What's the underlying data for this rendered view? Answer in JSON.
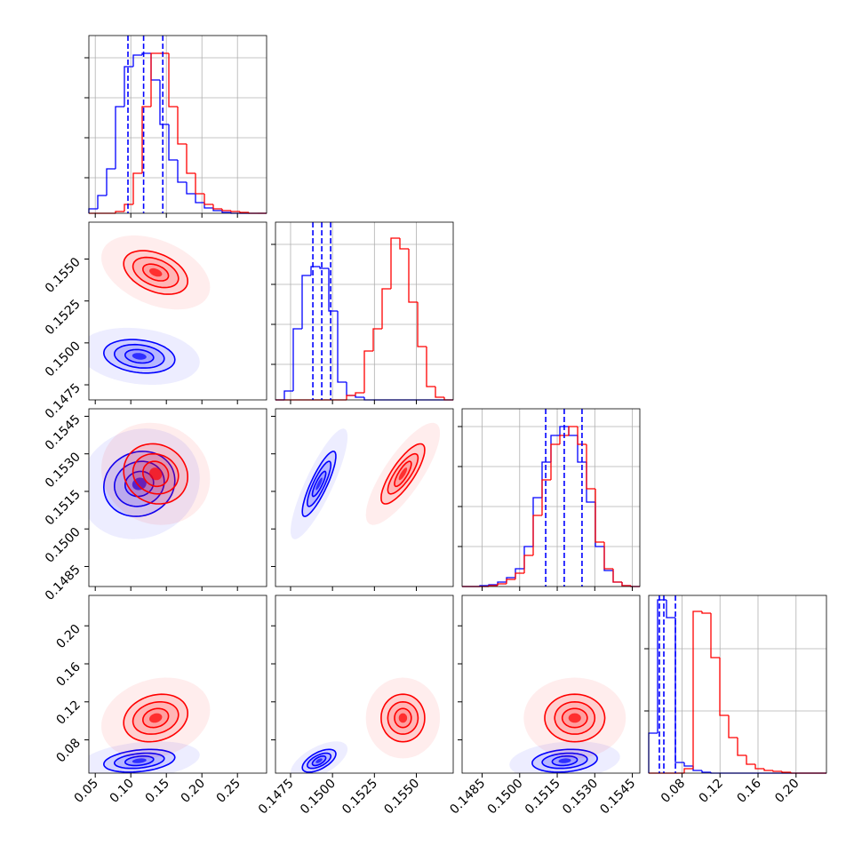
{
  "chart_data": {
    "type": "corner",
    "colors": [
      "#0000ff",
      "#ff0000"
    ],
    "grid": true,
    "params": [
      {
        "lim": [
          0.041,
          0.291
        ],
        "ticks": [
          0.05,
          {
            "value": 0.1,
            "label": "0.10"
          },
          0.15,
          {
            "value": 0.2,
            "label": "0.20"
          },
          0.25
        ],
        "bins": [
          0.041,
          0.0535,
          0.066,
          0.0785,
          0.091,
          0.1035,
          0.116,
          0.1285,
          0.141,
          0.1535,
          0.166,
          0.1785,
          0.191,
          0.2035,
          0.216,
          0.2285,
          0.241,
          0.2535,
          0.266,
          0.2785,
          0.291
        ],
        "counts": [
          [
            5,
            20,
            50,
            120,
            165,
            178,
            180,
            150,
            100,
            60,
            35,
            22,
            12,
            6,
            3,
            1,
            0,
            0,
            0,
            0
          ],
          [
            0,
            0,
            0,
            2,
            10,
            45,
            120,
            180,
            180,
            120,
            78,
            45,
            22,
            10,
            5,
            3,
            2,
            1,
            0,
            0
          ]
        ],
        "count_lim": [
          0,
          200
        ],
        "count_ticks": [
          40,
          85,
          130,
          175
        ],
        "quantiles": [
          0.096,
          0.118,
          0.145
        ]
      },
      {
        "lim": [
          0.1466,
          0.1572
        ],
        "ticks": [
          0.1475,
          {
            "value": 0.15,
            "label": "0.1500"
          },
          0.1525,
          {
            "value": 0.155,
            "label": "0.1550"
          }
        ],
        "bins": [
          0.1466,
          0.14713,
          0.14766,
          0.14819,
          0.14872,
          0.14925,
          0.14978,
          0.15031,
          0.15084,
          0.15137,
          0.1519,
          0.15243,
          0.15296,
          0.15349,
          0.15402,
          0.15455,
          0.15508,
          0.15561,
          0.15614,
          0.15667,
          0.1572
        ],
        "counts": [
          [
            0,
            10,
            80,
            140,
            150,
            148,
            100,
            20,
            5,
            3,
            0,
            0,
            0,
            0,
            0,
            0,
            0,
            0,
            0,
            0
          ],
          [
            0,
            0,
            0,
            0,
            0,
            0,
            0,
            0,
            5,
            8,
            55,
            80,
            125,
            182,
            170,
            110,
            60,
            15,
            3,
            0
          ]
        ],
        "count_lim": [
          0,
          200
        ],
        "count_ticks": [
          40,
          85,
          130,
          175
        ],
        "quantiles": [
          0.14883,
          0.14936,
          0.14989
        ]
      },
      {
        "lim": [
          0.1477,
          0.1548
        ],
        "ticks": [
          0.1485,
          {
            "value": 0.15,
            "label": "0.1500"
          },
          0.1515,
          {
            "value": 0.153,
            "label": "0.1530"
          },
          0.1545
        ],
        "bins": [
          0.1477,
          0.148055,
          0.14841,
          0.148765,
          0.14912,
          0.149475,
          0.14983,
          0.150185,
          0.15054,
          0.150895,
          0.15125,
          0.151605,
          0.15196,
          0.152315,
          0.15267,
          0.153025,
          0.15338,
          0.153735,
          0.15409,
          0.154445,
          0.1548
        ],
        "counts": [
          [
            0,
            0,
            1,
            2,
            5,
            10,
            20,
            45,
            100,
            140,
            170,
            180,
            170,
            140,
            95,
            45,
            18,
            5,
            1,
            0
          ],
          [
            0,
            0,
            0,
            1,
            3,
            8,
            15,
            35,
            80,
            120,
            160,
            170,
            180,
            160,
            110,
            50,
            20,
            5,
            1,
            0
          ]
        ],
        "count_lim": [
          0,
          200
        ],
        "count_ticks": [
          45,
          90,
          135,
          180
        ],
        "quantiles": [
          0.15104,
          0.15178,
          0.15249
        ]
      },
      {
        "lim": [
          0.045,
          0.232
        ],
        "ticks": [
          0.08,
          0.12,
          0.16,
          {
            "value": 0.2,
            "label": "0.20"
          }
        ],
        "bins": [
          0.045,
          0.05435,
          0.0637,
          0.07305,
          0.0824,
          0.09175,
          0.1011,
          0.11045,
          0.1198,
          0.12915,
          0.1385,
          0.14785,
          0.1572,
          0.16655,
          0.1759,
          0.18525,
          0.1946,
          0.20395,
          0.2133,
          0.22265,
          0.232
        ],
        "counts": [
          [
            45,
            195,
            175,
            12,
            8,
            3,
            1,
            0,
            0,
            0,
            0,
            0,
            0,
            0,
            0,
            0,
            0,
            0,
            0,
            0
          ],
          [
            0,
            0,
            0,
            0,
            5,
            182,
            180,
            130,
            65,
            40,
            20,
            10,
            5,
            3,
            2,
            1,
            0,
            0,
            0,
            0
          ]
        ],
        "count_lim": [
          0,
          200
        ],
        "count_ticks": [
          70,
          140
        ],
        "quantiles": [
          0.0562,
          0.0609,
          0.0731
        ]
      }
    ],
    "panels": [
      {
        "contours": [
          {
            "center": [
              0.112,
              0.1492
            ],
            "rho": -0.2,
            "radii": [
              [
                0.02,
                0.0004
              ],
              [
                0.035,
                0.0007
              ],
              [
                0.05,
                0.001
              ]
            ]
          },
          {
            "center": [
              0.135,
              0.1542
            ],
            "rho": -0.4,
            "radii": [
              [
                0.018,
                0.0005
              ],
              [
                0.032,
                0.0009
              ],
              [
                0.045,
                0.0013
              ]
            ]
          }
        ]
      },
      {
        "contours": [
          {
            "center": [
              0.112,
              0.1518
            ],
            "rho": 0.1,
            "radii": [
              [
                0.02,
                0.0005
              ],
              [
                0.035,
                0.0009
              ],
              [
                0.05,
                0.0013
              ]
            ]
          },
          {
            "center": [
              0.135,
              0.1522
            ],
            "rho": -0.1,
            "radii": [
              [
                0.018,
                0.0005
              ],
              [
                0.032,
                0.0008
              ],
              [
                0.045,
                0.0012
              ]
            ]
          }
        ]
      },
      {
        "contours": [
          {
            "center": [
              0.1492,
              0.1518
            ],
            "rho": 0.85,
            "radii": [
              [
                0.0004,
                0.0005
              ],
              [
                0.0007,
                0.0009
              ],
              [
                0.001,
                0.0013
              ]
            ]
          },
          {
            "center": [
              0.1542,
              0.1522
            ],
            "rho": 0.8,
            "radii": [
              [
                0.0005,
                0.0005
              ],
              [
                0.0009,
                0.0008
              ],
              [
                0.0013,
                0.0012
              ]
            ]
          }
        ]
      },
      {
        "contours": [
          {
            "center": [
              0.112,
              0.058
            ],
            "rho": 0.3,
            "radii": [
              [
                0.02,
                0.005
              ],
              [
                0.035,
                0.008
              ],
              [
                0.05,
                0.012
              ]
            ]
          },
          {
            "center": [
              0.135,
              0.103
            ],
            "rho": 0.2,
            "radii": [
              [
                0.018,
                0.01
              ],
              [
                0.032,
                0.017
              ],
              [
                0.045,
                0.025
              ]
            ]
          }
        ]
      },
      {
        "contours": [
          {
            "center": [
              0.1492,
              0.058
            ],
            "rho": 0.6,
            "radii": [
              [
                0.0004,
                0.005
              ],
              [
                0.0007,
                0.008
              ],
              [
                0.001,
                0.012
              ]
            ]
          },
          {
            "center": [
              0.1542,
              0.103
            ],
            "rho": 0,
            "radii": [
              [
                0.0005,
                0.01
              ],
              [
                0.0009,
                0.017
              ],
              [
                0.0013,
                0.025
              ]
            ]
          }
        ]
      },
      {
        "contours": [
          {
            "center": [
              0.1518,
              0.058
            ],
            "rho": 0.2,
            "radii": [
              [
                0.0005,
                0.005
              ],
              [
                0.0009,
                0.008
              ],
              [
                0.0013,
                0.012
              ]
            ]
          },
          {
            "center": [
              0.1522,
              0.103
            ],
            "rho": 0,
            "radii": [
              [
                0.0005,
                0.01
              ],
              [
                0.0008,
                0.017
              ],
              [
                0.0012,
                0.025
              ]
            ]
          }
        ]
      }
    ]
  }
}
